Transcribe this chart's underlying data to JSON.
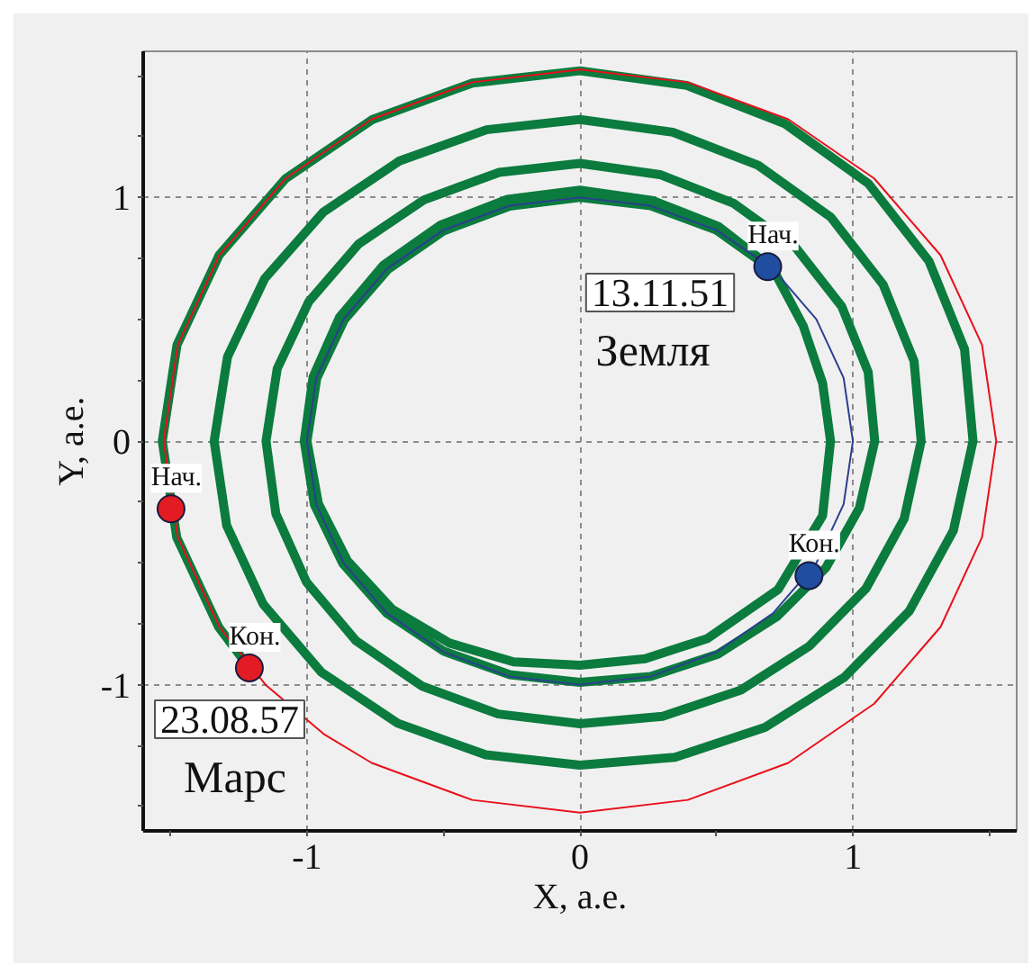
{
  "chart_data": {
    "type": "line",
    "xlabel": "X, а.е.",
    "ylabel": "Y, а.е.",
    "xlim": [
      -1.6,
      1.6
    ],
    "ylim": [
      -1.6,
      1.6
    ],
    "xticks": [
      {
        "value": -1.5,
        "label": null
      },
      -1,
      {
        "value": -0.5,
        "label": null
      },
      0,
      {
        "value": 0.5,
        "label": null
      },
      1,
      {
        "value": 1.5,
        "label": null
      }
    ],
    "yticks": [
      {
        "value": -1.5,
        "label": null
      },
      {
        "value": -1.25,
        "label": null
      },
      -1,
      {
        "value": -0.75,
        "label": null
      },
      {
        "value": -0.5,
        "label": null
      },
      {
        "value": -0.25,
        "label": null
      },
      0,
      {
        "value": 0.25,
        "label": null
      },
      {
        "value": 0.5,
        "label": null
      },
      {
        "value": 0.75,
        "label": null
      },
      1,
      {
        "value": 1.25,
        "label": null
      },
      {
        "value": 1.5,
        "label": null
      }
    ],
    "grid": true,
    "series": [
      {
        "color": "#0b7b3e",
        "x": [
          0.688,
          0.5,
          0.259,
          0,
          -0.258,
          -0.499,
          -0.704,
          -0.863,
          -0.964,
          -1,
          -0.958,
          -0.851,
          -0.689,
          -0.478,
          -0.243,
          0,
          0.239,
          0.468,
          0.726,
          0.889,
          0.918,
          0.889,
          0.818,
          0.707,
          0.508,
          0.265,
          0,
          -0.266,
          -0.512,
          -0.721,
          -0.881,
          -0.978,
          -1.01,
          -0.973,
          -0.869,
          -0.707,
          -0.498,
          -0.257,
          0,
          0.259,
          0.505,
          0.721,
          0.901,
          1.024,
          1.08,
          1.056,
          0.959,
          0.792,
          0.563,
          0.293,
          0,
          -0.296,
          -0.572,
          -0.81,
          -0.993,
          -1.109,
          -1.15,
          -1.114,
          -1.002,
          -0.82,
          -0.58,
          -0.3,
          0,
          0.303,
          0.59,
          0.841,
          1.048,
          1.188,
          1.25,
          1.224,
          1.111,
          0.919,
          0.653,
          0.34,
          0,
          -0.342,
          -0.663,
          -0.94,
          -1.155,
          -1.291,
          -1.34,
          -1.294,
          -1.16,
          -0.948,
          -0.668,
          -0.345,
          0,
          0.348,
          0.678,
          0.969,
          1.207,
          1.368,
          1.44,
          1.409,
          1.279,
          1.057,
          0.752,
          0.391,
          0,
          -0.394,
          -0.762,
          -1.078,
          -1.322,
          -1.476,
          -1.53,
          -1.477,
          -1.323,
          -1.211
        ],
        "values": [
          0.716,
          0.866,
          0.966,
          1,
          0.964,
          0.863,
          0.704,
          0.498,
          0.258,
          0,
          -0.257,
          -0.492,
          -0.689,
          -0.829,
          -0.906,
          -0.92,
          -0.893,
          -0.81,
          -0.609,
          -0.306,
          0,
          0.238,
          0.473,
          0.707,
          0.881,
          0.988,
          1.03,
          0.992,
          0.886,
          0.721,
          0.508,
          0.262,
          0,
          -0.261,
          -0.502,
          -0.707,
          -0.863,
          -0.959,
          -0.99,
          -0.966,
          -0.875,
          -0.721,
          -0.52,
          -0.274,
          0,
          0.283,
          0.553,
          0.792,
          0.976,
          1.094,
          1.14,
          1.103,
          0.99,
          0.81,
          0.573,
          0.297,
          0,
          -0.298,
          -0.578,
          -0.82,
          -1.005,
          -1.12,
          -1.16,
          -1.13,
          -1.022,
          -0.841,
          -0.605,
          -0.318,
          0,
          0.328,
          0.642,
          0.919,
          1.132,
          1.268,
          1.32,
          1.278,
          1.149,
          0.94,
          0.667,
          0.346,
          0,
          -0.347,
          -0.67,
          -0.948,
          -1.158,
          -1.288,
          -1.33,
          -1.298,
          -1.175,
          -0.969,
          -0.697,
          -0.367,
          0,
          0.377,
          0.738,
          1.057,
          1.302,
          1.46,
          1.52,
          1.47,
          1.319,
          1.078,
          0.763,
          0.395,
          0,
          -0.396,
          -0.764,
          -0.931
        ]
      },
      {
        "color": "#2b3f8f",
        "x": [
          1,
          0.966,
          0.866,
          0.707,
          0.5,
          0.259,
          0,
          -0.259,
          -0.5,
          -0.707,
          -0.866,
          -0.966,
          -1,
          -0.966,
          -0.866,
          -0.707,
          -0.5,
          -0.259,
          0,
          0.259,
          0.5,
          0.707,
          0.866,
          0.966,
          1,
          0.966
        ],
        "values": [
          0,
          0.259,
          0.5,
          0.707,
          0.866,
          0.966,
          1,
          0.966,
          0.866,
          0.707,
          0.5,
          0.259,
          0,
          -0.259,
          -0.5,
          -0.707,
          -0.866,
          -0.966,
          -1,
          -0.966,
          -0.866,
          -0.707,
          -0.5,
          -0.259,
          0,
          0.259
        ]
      },
      {
        "color": "#e8101a",
        "x": [
          1.525,
          1.473,
          1.321,
          1.078,
          0.763,
          0.395,
          0,
          -0.395,
          -0.763,
          -1.078,
          -1.321,
          -1.473,
          -1.525,
          -1.473,
          -1.321,
          -1.151,
          -0.939,
          -0.763,
          -0.395,
          0,
          0.395,
          0.763,
          1.078,
          1.321,
          1.473,
          1.525,
          1.473
        ],
        "values": [
          0,
          0.395,
          0.763,
          1.078,
          1.321,
          1.473,
          1.525,
          1.473,
          1.321,
          1.078,
          0.763,
          0.395,
          0,
          -0.395,
          -0.763,
          -1.001,
          -1.202,
          -1.321,
          -1.473,
          -1.525,
          -1.473,
          -1.321,
          -1.078,
          -0.763,
          -0.395,
          0,
          0.395
        ]
      },
      {
        "type": "scatter",
        "marker": "circle",
        "color": "#1f4ea0",
        "x": [
          0.688,
          0.839
        ],
        "values": [
          0.716,
          -0.552
        ],
        "value_labels": [
          "Нач.",
          "Кон."
        ]
      },
      {
        "type": "scatter",
        "marker": "circle",
        "color": "#e31b23",
        "x": [
          -1.498,
          -1.211
        ],
        "values": [
          -0.278,
          -0.931
        ],
        "value_labels": [
          "Нач.",
          "Кон."
        ]
      }
    ],
    "annotations": [
      "13.11.51",
      "Земля",
      "23.08.57",
      "Марс"
    ]
  }
}
